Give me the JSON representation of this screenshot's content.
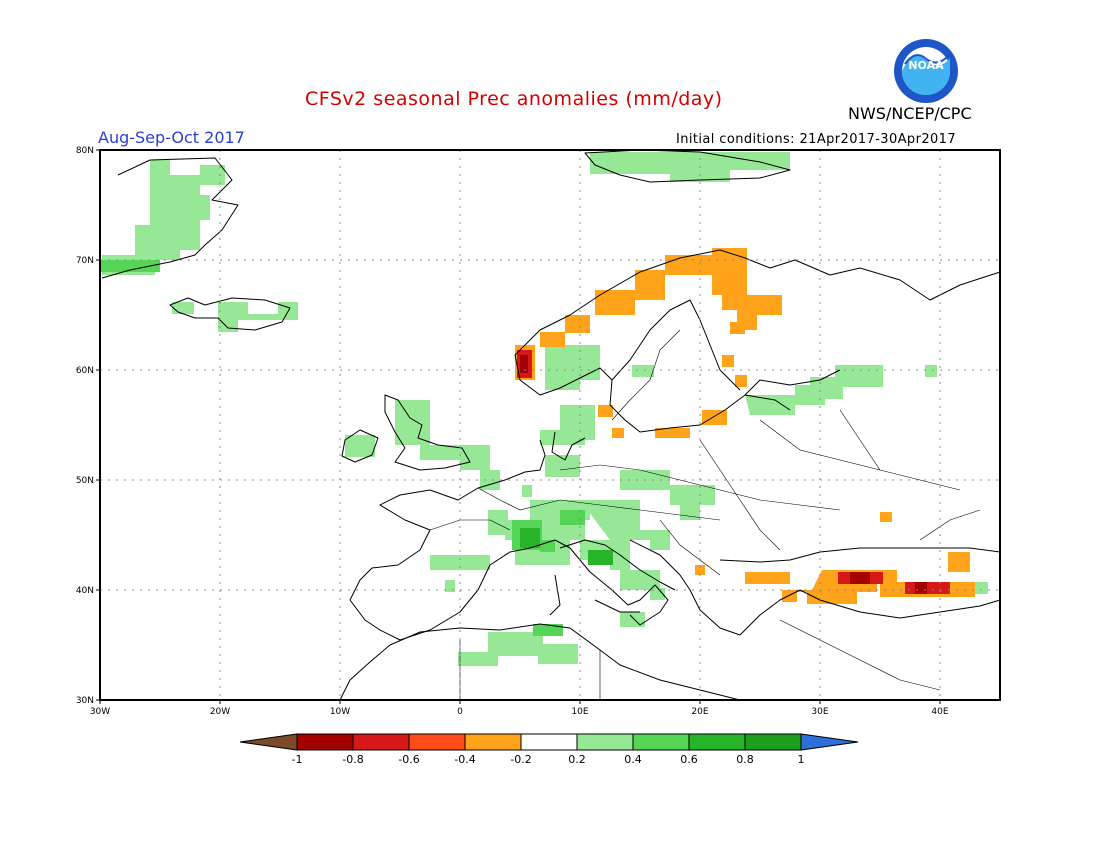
{
  "header": {
    "title": "CFSv2 seasonal Prec anomalies (mm/day)",
    "period": "Aug-Sep-Oct 2017",
    "initial_conditions": "Initial conditions: 21Apr2017-30Apr2017",
    "agency": "NWS/NCEP/CPC",
    "logo_text": "NOAA"
  },
  "map": {
    "lat_labels": [
      "80N",
      "70N",
      "60N",
      "50N",
      "40N",
      "30N"
    ],
    "lon_labels": [
      "30W",
      "20W",
      "10W",
      "0",
      "10E",
      "20E",
      "30E",
      "40E"
    ],
    "lon_range": [
      -30,
      45
    ],
    "lat_range": [
      30,
      80
    ],
    "grid": "dotted"
  },
  "legend": {
    "tick_labels": [
      "-1",
      "-0.8",
      "-0.6",
      "-0.4",
      "-0.2",
      "0.2",
      "0.4",
      "0.6",
      "0.8",
      "1"
    ],
    "bins": [
      {
        "range": "< -1",
        "color": "#7a4a2a"
      },
      {
        "range": "-1 to -0.8",
        "color": "#a50000"
      },
      {
        "range": "-0.8 to -0.6",
        "color": "#d61818"
      },
      {
        "range": "-0.6 to -0.4",
        "color": "#ff4d1a"
      },
      {
        "range": "-0.4 to -0.2",
        "color": "#ffa31a"
      },
      {
        "range": "-0.2 to 0.2",
        "color": "#ffffff"
      },
      {
        "range": "0.2 to 0.4",
        "color": "#96e896"
      },
      {
        "range": "0.4 to 0.6",
        "color": "#55d455"
      },
      {
        "range": "0.6 to 0.8",
        "color": "#28b428"
      },
      {
        "range": "0.8 to 1",
        "color": "#1e9e1e"
      },
      {
        "range": "> 1",
        "color": "#2e6fd8"
      }
    ]
  },
  "anomaly_regions": [
    {
      "name": "Greenland east coast",
      "anomaly": 0.3
    },
    {
      "name": "Iceland",
      "anomaly": 0.3
    },
    {
      "name": "Ireland and Britain",
      "anomaly": 0.3
    },
    {
      "name": "Western Norway coast",
      "anomaly": -0.4
    },
    {
      "name": "Southern Norway interior",
      "anomaly": 0.3
    },
    {
      "name": "Northern Scandinavia",
      "anomaly": -0.3
    },
    {
      "name": "Baltic and western Russia",
      "anomaly": 0.3
    },
    {
      "name": "France, Alps and Italy",
      "anomaly": 0.4
    },
    {
      "name": "North Africa coast",
      "anomaly": 0.3
    },
    {
      "name": "Northern Turkey",
      "anomaly": -0.6
    }
  ]
}
